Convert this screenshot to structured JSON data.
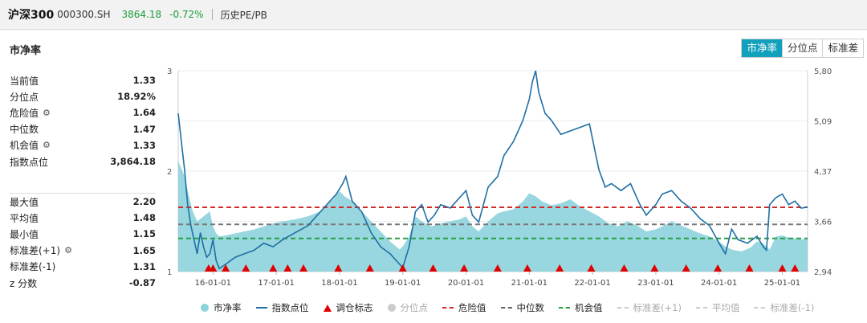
{
  "header": {
    "name": "沪深300",
    "code": "000300.SH",
    "price": "3864.18",
    "change": "-0.72%",
    "tab": "历史PE/PB"
  },
  "panel": {
    "title": "市净率",
    "buttons": [
      "市净率",
      "分位点",
      "标准差"
    ],
    "active_button": 0
  },
  "stats_top": [
    {
      "label": "当前值",
      "value": "1.33",
      "gear": false
    },
    {
      "label": "分位点",
      "value": "18.92%",
      "gear": false
    },
    {
      "label": "危险值",
      "value": "1.64",
      "gear": true
    },
    {
      "label": "中位数",
      "value": "1.47",
      "gear": false
    },
    {
      "label": "机会值",
      "value": "1.33",
      "gear": true
    },
    {
      "label": "指数点位",
      "value": "3,864.18",
      "gear": false
    }
  ],
  "stats_bottom": [
    {
      "label": "最大值",
      "value": "2.20",
      "gear": false
    },
    {
      "label": "平均值",
      "value": "1.48",
      "gear": false
    },
    {
      "label": "最小值",
      "value": "1.15",
      "gear": false
    },
    {
      "label": "标准差(+1)",
      "value": "1.65",
      "gear": true
    },
    {
      "label": "标准差(-1)",
      "value": "1.31",
      "gear": false
    },
    {
      "label": "z 分数",
      "value": "-0.87",
      "gear": false
    }
  ],
  "legend": [
    {
      "label": "市净率",
      "kind": "dot",
      "color": "#8dd3dc",
      "muted": false
    },
    {
      "label": "指数点位",
      "kind": "line",
      "color": "#1f6fa5",
      "muted": false
    },
    {
      "label": "调仓标志",
      "kind": "tri",
      "color": "#e00000",
      "muted": false
    },
    {
      "label": "分位点",
      "kind": "dot",
      "color": "#cccccc",
      "muted": true
    },
    {
      "label": "危险值",
      "kind": "dash",
      "color": "#d22b2b",
      "muted": false
    },
    {
      "label": "中位数",
      "kind": "dash",
      "color": "#666666",
      "muted": false
    },
    {
      "label": "机会值",
      "kind": "dash",
      "color": "#2a9d45",
      "muted": false
    },
    {
      "label": "标准差(+1)",
      "kind": "dash",
      "color": "#cccccc",
      "muted": true
    },
    {
      "label": "平均值",
      "kind": "dash",
      "color": "#cccccc",
      "muted": true
    },
    {
      "label": "标准差(-1)",
      "kind": "dash",
      "color": "#cccccc",
      "muted": true
    }
  ],
  "chart_data": {
    "type": "area",
    "x_tick_labels": [
      "16-01-01",
      "17-01-01",
      "18-01-01",
      "19-01-01",
      "20-01-01",
      "21-01-01",
      "22-01-01",
      "23-01-01",
      "24-01-01",
      "25-01-01"
    ],
    "x_range": [
      2015.45,
      2025.4
    ],
    "y_left_ticks": [
      "1",
      "2",
      "3"
    ],
    "y_left_range": [
      1,
      3
    ],
    "y_right_ticks": [
      "2,946",
      "3,662",
      "4,378",
      "5,094",
      "5,808"
    ],
    "y_right_range": [
      2946,
      5808
    ],
    "hlines": {
      "danger": 1.64,
      "median": 1.47,
      "opportunity": 1.33
    },
    "colors": {
      "area": "#8dd3dc",
      "index_line": "#1f6fa5",
      "danger": "#d22b2b",
      "median": "#777777",
      "opportunity": "#2a9d45",
      "marker": "#e00000"
    },
    "series": [
      {
        "name": "市净率",
        "axis": "left",
        "x": [
          2015.45,
          2015.55,
          2015.62,
          2015.68,
          2015.75,
          2015.85,
          2015.95,
          2016.0,
          2016.05,
          2016.1,
          2016.2,
          2016.35,
          2016.5,
          2016.65,
          2016.8,
          2016.95,
          2017.1,
          2017.3,
          2017.5,
          2017.7,
          2017.9,
          2018.0,
          2018.08,
          2018.2,
          2018.35,
          2018.5,
          2018.65,
          2018.8,
          2018.95,
          2019.0,
          2019.1,
          2019.2,
          2019.3,
          2019.45,
          2019.6,
          2019.75,
          2019.9,
          2020.0,
          2020.1,
          2020.2,
          2020.35,
          2020.5,
          2020.6,
          2020.75,
          2020.9,
          2021.0,
          2021.1,
          2021.2,
          2021.35,
          2021.5,
          2021.65,
          2021.8,
          2021.95,
          2022.1,
          2022.25,
          2022.4,
          2022.55,
          2022.7,
          2022.85,
          2023.0,
          2023.1,
          2023.25,
          2023.4,
          2023.55,
          2023.7,
          2023.85,
          2024.0,
          2024.1,
          2024.2,
          2024.35,
          2024.5,
          2024.6,
          2024.7,
          2024.8,
          2024.9,
          2025.0,
          2025.1,
          2025.2,
          2025.3,
          2025.4
        ],
        "values": [
          2.1,
          1.95,
          1.75,
          1.6,
          1.5,
          1.55,
          1.6,
          1.45,
          1.38,
          1.35,
          1.36,
          1.38,
          1.4,
          1.42,
          1.45,
          1.48,
          1.5,
          1.52,
          1.55,
          1.6,
          1.72,
          1.8,
          1.75,
          1.7,
          1.6,
          1.5,
          1.4,
          1.3,
          1.22,
          1.25,
          1.35,
          1.55,
          1.5,
          1.45,
          1.48,
          1.5,
          1.52,
          1.55,
          1.45,
          1.4,
          1.5,
          1.58,
          1.6,
          1.62,
          1.7,
          1.78,
          1.75,
          1.7,
          1.66,
          1.68,
          1.72,
          1.65,
          1.6,
          1.55,
          1.48,
          1.45,
          1.5,
          1.46,
          1.4,
          1.42,
          1.45,
          1.5,
          1.46,
          1.42,
          1.38,
          1.35,
          1.3,
          1.25,
          1.22,
          1.2,
          1.24,
          1.3,
          1.28,
          1.22,
          1.35,
          1.36,
          1.34,
          1.33,
          1.32,
          1.33
        ]
      },
      {
        "name": "指数点位",
        "axis": "right",
        "x": [
          2015.45,
          2015.5,
          2015.55,
          2015.6,
          2015.65,
          2015.7,
          2015.75,
          2015.8,
          2015.85,
          2015.9,
          2015.95,
          2016.0,
          2016.05,
          2016.1,
          2016.2,
          2016.35,
          2016.5,
          2016.65,
          2016.8,
          2016.95,
          2017.1,
          2017.3,
          2017.5,
          2017.7,
          2017.85,
          2017.95,
          2018.05,
          2018.1,
          2018.2,
          2018.35,
          2018.5,
          2018.65,
          2018.8,
          2018.95,
          2019.0,
          2019.1,
          2019.2,
          2019.3,
          2019.4,
          2019.5,
          2019.6,
          2019.75,
          2019.9,
          2020.0,
          2020.1,
          2020.2,
          2020.35,
          2020.5,
          2020.6,
          2020.75,
          2020.9,
          2021.0,
          2021.05,
          2021.1,
          2021.15,
          2021.25,
          2021.35,
          2021.5,
          2021.65,
          2021.8,
          2021.95,
          2022.1,
          2022.2,
          2022.3,
          2022.45,
          2022.6,
          2022.75,
          2022.85,
          2023.0,
          2023.1,
          2023.25,
          2023.4,
          2023.55,
          2023.7,
          2023.85,
          2024.0,
          2024.1,
          2024.2,
          2024.3,
          2024.45,
          2024.6,
          2024.7,
          2024.75,
          2024.8,
          2024.9,
          2025.0,
          2025.1,
          2025.2,
          2025.3,
          2025.4
        ],
        "values": [
          5200,
          4800,
          4400,
          3900,
          3600,
          3400,
          3200,
          3500,
          3300,
          3150,
          3200,
          3400,
          3100,
          2990,
          3050,
          3150,
          3200,
          3250,
          3350,
          3300,
          3400,
          3500,
          3600,
          3800,
          3950,
          4050,
          4200,
          4300,
          3950,
          3800,
          3500,
          3300,
          3200,
          3050,
          3000,
          3300,
          3800,
          3900,
          3650,
          3750,
          3900,
          3850,
          4000,
          4100,
          3750,
          3650,
          4150,
          4300,
          4600,
          4800,
          5100,
          5400,
          5650,
          5808,
          5500,
          5200,
          5100,
          4900,
          4950,
          5000,
          5050,
          4400,
          4150,
          4200,
          4100,
          4200,
          3900,
          3750,
          3900,
          4050,
          4100,
          3950,
          3850,
          3700,
          3600,
          3350,
          3200,
          3550,
          3400,
          3350,
          3450,
          3300,
          3250,
          3900,
          4000,
          4050,
          3900,
          3950,
          3850,
          3864
        ]
      }
    ],
    "markers_x": [
      2015.93,
      2016.0,
      2016.2,
      2016.52,
      2016.95,
      2017.18,
      2017.43,
      2017.98,
      2018.48,
      2019.0,
      2019.48,
      2019.97,
      2020.5,
      2020.97,
      2021.48,
      2021.98,
      2022.5,
      2022.98,
      2023.48,
      2023.98,
      2024.48,
      2025.0,
      2025.2
    ]
  }
}
